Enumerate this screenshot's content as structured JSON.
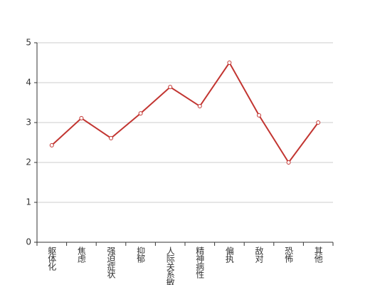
{
  "chart_data": {
    "type": "line",
    "categories": [
      "躯体化",
      "焦虑",
      "强迫症状",
      "抑郁",
      "人际关系敏感",
      "精神病性",
      "偏执",
      "敌对",
      "恐怖",
      "其他"
    ],
    "values": [
      2.43,
      3.11,
      2.61,
      3.23,
      3.89,
      3.41,
      4.5,
      3.18,
      2.0,
      3.0
    ],
    "color": "#c23531",
    "ylim": [
      0,
      5
    ],
    "yticks": [
      0,
      1,
      2,
      3,
      4,
      5
    ],
    "grid": true
  }
}
